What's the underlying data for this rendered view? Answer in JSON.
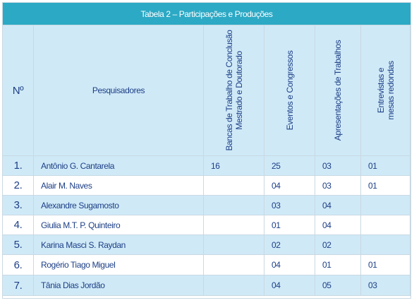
{
  "table": {
    "title": "Tabela 2 – Participações e Produções",
    "headers": {
      "num": "Nº",
      "name": "Pesquisadores",
      "bancas_line1": "Bancas de Trabalho de Conclusão",
      "bancas_line2": "Mestrado e Doutorado",
      "eventos": "Eventos e Congressos",
      "apresentacoes": "Apresentações de Trabalhos",
      "entrevistas_line1": "Entrevistas e",
      "entrevistas_line2": "mesas redondas"
    },
    "rows": [
      {
        "num": "1.",
        "name": "Antônio G. Cantarela",
        "bancas": "16",
        "eventos": "25",
        "apresentacoes": "03",
        "entrevistas": "01"
      },
      {
        "num": "2.",
        "name": "Alair M. Naves",
        "bancas": "",
        "eventos": "04",
        "apresentacoes": "03",
        "entrevistas": "01"
      },
      {
        "num": "3.",
        "name": "Alexandre Sugamosto",
        "bancas": "",
        "eventos": "03",
        "apresentacoes": "04",
        "entrevistas": ""
      },
      {
        "num": "4.",
        "name": "Giulia M.T. P. Quinteiro",
        "bancas": "",
        "eventos": "01",
        "apresentacoes": "04",
        "entrevistas": ""
      },
      {
        "num": "5.",
        "name": "Karina Masci S. Raydan",
        "bancas": "",
        "eventos": "02",
        "apresentacoes": "02",
        "entrevistas": ""
      },
      {
        "num": "6.",
        "name": "Rogério Tiago Miguel",
        "bancas": "",
        "eventos": "04",
        "apresentacoes": "01",
        "entrevistas": "01"
      },
      {
        "num": "7.",
        "name": "Tânia Dias Jordão",
        "bancas": "",
        "eventos": "04",
        "apresentacoes": "05",
        "entrevistas": "03"
      }
    ]
  }
}
